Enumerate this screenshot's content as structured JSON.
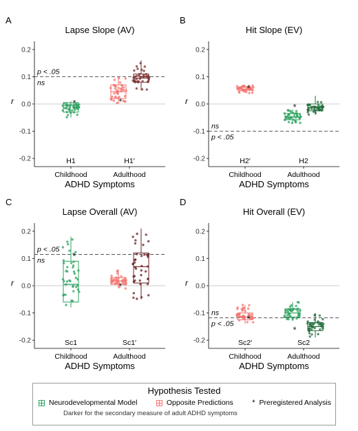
{
  "chart_data": [
    {
      "type": "box-jitter",
      "panel_letter": "A",
      "title": "Lapse Slope (AV)",
      "xlabel": "ADHD Symptoms",
      "ylabel": "r",
      "ylim": [
        -0.23,
        0.23
      ],
      "yticks": [
        -0.2,
        -0.1,
        0.0,
        0.1,
        0.2
      ],
      "categories": [
        "Childhood",
        "Adulthood"
      ],
      "reference_line": 0.1,
      "above_label": "p < .05",
      "below_label": "ns",
      "boxes": [
        {
          "hypothesis": "H1",
          "category": "Childhood",
          "color": "#2ca25f",
          "min": -0.05,
          "q1": -0.03,
          "median": -0.005,
          "q3": 0.005,
          "max": 0.01
        },
        {
          "hypothesis": "H1′",
          "category": "Adulthood",
          "color": "#f5736e",
          "min": 0.0,
          "q1": 0.02,
          "median": 0.045,
          "q3": 0.07,
          "max": 0.1
        },
        {
          "hypothesis": "",
          "category": "Adulthood",
          "color": "#7b2d2d",
          "min": 0.05,
          "q1": 0.08,
          "median": 0.095,
          "q3": 0.11,
          "max": 0.16
        }
      ],
      "preregistered": [
        {
          "category": "Childhood",
          "value": 0.005
        },
        {
          "category": "Adulthood",
          "value": 0.01
        }
      ]
    },
    {
      "type": "box-jitter",
      "panel_letter": "B",
      "title": "Hit Slope (EV)",
      "xlabel": "ADHD Symptoms",
      "ylabel": "r",
      "ylim": [
        -0.23,
        0.23
      ],
      "yticks": [
        -0.2,
        -0.1,
        0.0,
        0.1,
        0.2
      ],
      "categories": [
        "Childhood",
        "Adulthood"
      ],
      "reference_line": -0.1,
      "above_label": "ns",
      "below_label": "p < .05",
      "boxes": [
        {
          "hypothesis": "H2′",
          "category": "Childhood",
          "color": "#f5736e",
          "min": 0.04,
          "q1": 0.05,
          "median": 0.055,
          "q3": 0.062,
          "max": 0.07
        },
        {
          "hypothesis": "H2",
          "category": "Adulthood",
          "color": "#2ca25f",
          "min": -0.07,
          "q1": -0.058,
          "median": -0.048,
          "q3": -0.035,
          "max": -0.02
        },
        {
          "hypothesis": "",
          "category": "Adulthood",
          "color": "#1f6b3a",
          "min": -0.04,
          "q1": -0.025,
          "median": -0.012,
          "q3": 0.0,
          "max": 0.03
        }
      ],
      "preregistered": [
        {
          "category": "Childhood",
          "value": 0.06
        },
        {
          "category": "Adulthood",
          "value": -0.01
        }
      ]
    },
    {
      "type": "box-jitter",
      "panel_letter": "C",
      "title": "Lapse Overall (AV)",
      "xlabel": "ADHD Symptoms",
      "ylabel": "r",
      "ylim": [
        -0.23,
        0.23
      ],
      "yticks": [
        -0.2,
        -0.1,
        0.0,
        0.1,
        0.2
      ],
      "categories": [
        "Childhood",
        "Adulthood"
      ],
      "reference_line": 0.115,
      "above_label": "p < .05",
      "below_label": "ns",
      "boxes": [
        {
          "hypothesis": "Sc1",
          "category": "Childhood",
          "color": "#2ca25f",
          "min": -0.08,
          "q1": -0.06,
          "median": 0.005,
          "q3": 0.09,
          "max": 0.18
        },
        {
          "hypothesis": "Sc1′",
          "category": "Adulthood",
          "color": "#f5736e",
          "min": -0.01,
          "q1": 0.005,
          "median": 0.018,
          "q3": 0.03,
          "max": 0.06
        },
        {
          "hypothesis": "",
          "category": "Adulthood",
          "color": "#6b2020",
          "min": -0.05,
          "q1": 0.01,
          "median": 0.07,
          "q3": 0.12,
          "max": 0.21
        }
      ],
      "preregistered": [
        {
          "category": "Childhood",
          "value": 0.11
        },
        {
          "category": "Adulthood",
          "value": 0.0
        }
      ]
    },
    {
      "type": "box-jitter",
      "panel_letter": "D",
      "title": "Hit Overall (EV)",
      "xlabel": "ADHD Symptoms",
      "ylabel": "r",
      "ylim": [
        -0.23,
        0.23
      ],
      "yticks": [
        -0.2,
        -0.1,
        0.0,
        0.1,
        0.2
      ],
      "categories": [
        "Childhood",
        "Adulthood"
      ],
      "reference_line": -0.118,
      "above_label": "ns",
      "below_label": "p < .05",
      "boxes": [
        {
          "hypothesis": "Sc2′",
          "category": "Childhood",
          "color": "#f5736e",
          "min": -0.14,
          "q1": -0.125,
          "median": -0.115,
          "q3": -0.1,
          "max": -0.07
        },
        {
          "hypothesis": "Sc2",
          "category": "Adulthood",
          "color": "#2ca25f",
          "min": -0.13,
          "q1": -0.115,
          "median": -0.1,
          "q3": -0.085,
          "max": -0.06
        },
        {
          "hypothesis": "",
          "category": "Adulthood",
          "color": "#1f6b3a",
          "min": -0.19,
          "q1": -0.165,
          "median": -0.15,
          "q3": -0.135,
          "max": -0.1
        }
      ],
      "preregistered": [
        {
          "category": "Childhood",
          "value": -0.12
        },
        {
          "category": "Adulthood",
          "value": -0.16
        }
      ]
    }
  ],
  "legend": {
    "title": "Hypothesis Tested",
    "items": [
      {
        "label": "Neurodevelopmental Model",
        "color": "#2ca25f"
      },
      {
        "label": "Opposite Predictions",
        "color": "#f5736e"
      },
      {
        "label": "Preregistered Analysis",
        "symbol": "*"
      }
    ],
    "note": "Darker for the secondary measure of adult ADHD symptoms"
  }
}
